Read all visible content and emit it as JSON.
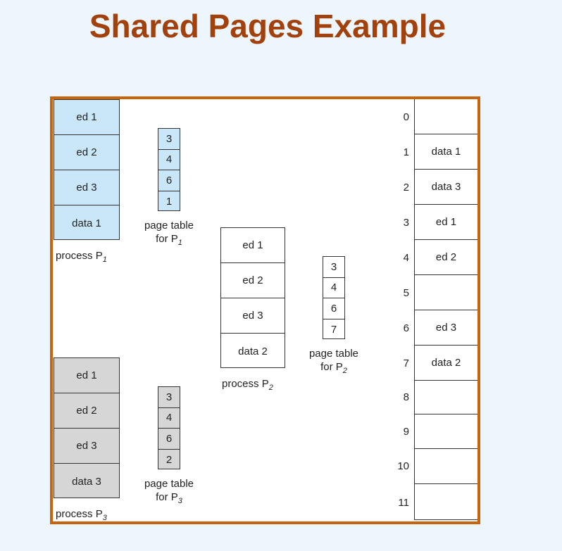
{
  "title": "Shared Pages Example",
  "process1": {
    "pages": [
      "ed 1",
      "ed 2",
      "ed 3",
      "data 1"
    ],
    "label_prefix": "process P",
    "label_sub": "1"
  },
  "page_table1": {
    "entries": [
      "3",
      "4",
      "6",
      "1"
    ],
    "line1": "page table",
    "line2_prefix": "for P",
    "line2_sub": "1"
  },
  "process2": {
    "pages": [
      "ed 1",
      "ed 2",
      "ed 3",
      "data 2"
    ],
    "label_prefix": "process P",
    "label_sub": "2"
  },
  "page_table2": {
    "entries": [
      "3",
      "4",
      "6",
      "7"
    ],
    "line1": "page table",
    "line2_prefix": "for P",
    "line2_sub": "2"
  },
  "process3": {
    "pages": [
      "ed 1",
      "ed 2",
      "ed 3",
      "data 3"
    ],
    "label_prefix": "process P",
    "label_sub": "3"
  },
  "page_table3": {
    "entries": [
      "3",
      "4",
      "6",
      "2"
    ],
    "line1": "page table",
    "line2_prefix": "for P",
    "line2_sub": "3"
  },
  "physical_memory": {
    "indices": [
      "0",
      "1",
      "2",
      "3",
      "4",
      "5",
      "6",
      "7",
      "8",
      "9",
      "10",
      "11"
    ],
    "frames": [
      "",
      "data 1",
      "data 3",
      "ed 1",
      "ed 2",
      "",
      "ed 3",
      "data 2",
      "",
      "",
      "",
      ""
    ]
  }
}
